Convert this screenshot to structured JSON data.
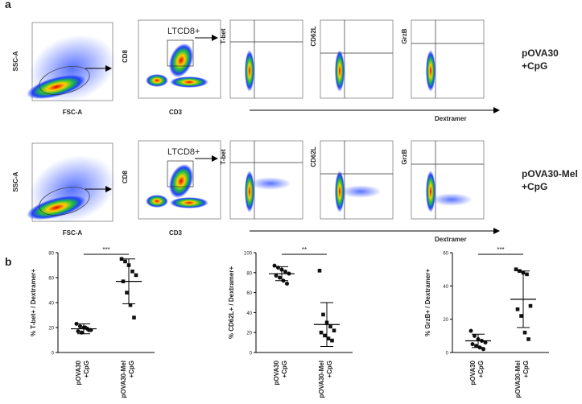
{
  "panel_labels": [
    "a",
    "b"
  ],
  "flow": {
    "fsc": "FSC-A",
    "ssc": "SSC-A",
    "cd3": "CD3",
    "cd8": "CD8",
    "gate": "LTCD8+",
    "markers": [
      "T-bet",
      "CD62L",
      "GrzB"
    ],
    "dextramer": "Dextramer",
    "conditions": [
      [
        "pOVA30",
        "+CpG"
      ],
      [
        "pOVA30-Mel",
        "+CpG"
      ]
    ]
  },
  "chart_data": [
    {
      "type": "scatter",
      "y_label": "% T-bet+ / Dextramer+",
      "significance": "***",
      "categories": [
        [
          "pOVA30",
          "+CpG"
        ],
        [
          "pOVA30-Mel",
          "+CpG"
        ]
      ],
      "groups": [
        {
          "values": [
            23,
            21,
            20,
            19,
            18,
            17,
            16,
            20,
            18
          ],
          "mean": 19,
          "sd": 4
        },
        {
          "values": [
            75,
            73,
            70,
            65,
            62,
            57,
            48,
            38,
            28
          ],
          "mean": 57,
          "sd": 18
        }
      ],
      "color": "#111111",
      "ylim": [
        0,
        80
      ],
      "yticks": [
        0,
        20,
        40,
        60,
        80
      ]
    },
    {
      "type": "scatter",
      "y_label": "% CD62L+ / Dextramer+",
      "significance": "**",
      "categories": [
        [
          "pOVA30",
          "+CpG"
        ],
        [
          "pOVA30-Mel",
          "+CpG"
        ]
      ],
      "groups": [
        {
          "values": [
            87,
            85,
            83,
            81,
            79,
            77,
            75,
            72,
            69
          ],
          "mean": 79,
          "sd": 7
        },
        {
          "values": [
            82,
            38,
            30,
            26,
            22,
            20,
            17,
            14,
            12
          ],
          "mean": 28,
          "sd": 22
        }
      ],
      "color": "#111111",
      "ylim": [
        0,
        100
      ],
      "yticks": [
        0,
        20,
        40,
        60,
        80,
        100
      ]
    },
    {
      "type": "scatter",
      "y_label": "% GrzB+ / Dextramer+",
      "significance": "***",
      "categories": [
        [
          "pOVA30",
          "+CpG"
        ],
        [
          "pOVA30-Mel",
          "+CpG"
        ]
      ],
      "groups": [
        {
          "values": [
            13,
            10,
            8,
            7,
            6,
            5,
            4,
            3,
            2
          ],
          "mean": 7,
          "sd": 4
        },
        {
          "values": [
            50,
            49,
            48,
            47,
            28,
            26,
            22,
            12,
            8
          ],
          "mean": 32,
          "sd": 17
        }
      ],
      "color": "#111111",
      "ylim": [
        0,
        60
      ],
      "yticks": [
        0,
        20,
        40,
        60
      ]
    }
  ]
}
